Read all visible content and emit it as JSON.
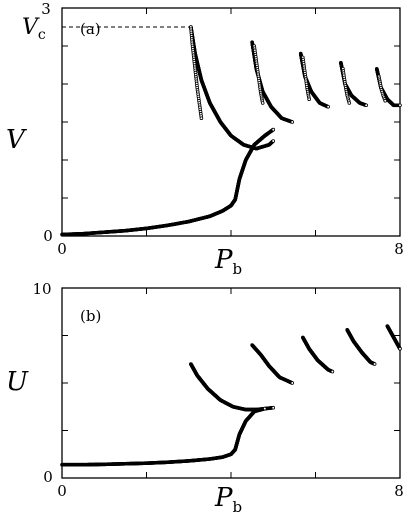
{
  "chart_data": [
    {
      "type": "scatter",
      "panel_label": "(a)",
      "xlabel": "P",
      "xlabel_sub": "b",
      "ylabel": "V",
      "xlim": [
        0,
        8
      ],
      "ylim": [
        0,
        3
      ],
      "x_ticks": [
        "0",
        "8"
      ],
      "y_ticks": [
        "0",
        "3"
      ],
      "annotation": {
        "label": "V",
        "sub": "c",
        "value": 2.75,
        "x_end": 3.05
      },
      "series": [
        {
          "points": [
            [
              0,
              0.02
            ],
            [
              0.5,
              0.03
            ],
            [
              1.0,
              0.05
            ],
            [
              1.5,
              0.07
            ],
            [
              2.0,
              0.1
            ],
            [
              2.5,
              0.14
            ],
            [
              3.0,
              0.19
            ],
            [
              3.5,
              0.26
            ],
            [
              3.8,
              0.33
            ],
            [
              4.0,
              0.4
            ],
            [
              4.1,
              0.48
            ]
          ]
        },
        {
          "points": [
            [
              4.1,
              0.48
            ],
            [
              4.2,
              0.75
            ],
            [
              4.35,
              1.0
            ],
            [
              4.55,
              1.2
            ],
            [
              4.8,
              1.32
            ],
            [
              5.0,
              1.4
            ]
          ]
        },
        {
          "points": [
            [
              3.05,
              2.75
            ],
            [
              3.15,
              2.4
            ],
            [
              3.3,
              2.05
            ],
            [
              3.5,
              1.75
            ],
            [
              3.75,
              1.5
            ],
            [
              4.0,
              1.32
            ],
            [
              4.3,
              1.2
            ],
            [
              4.6,
              1.15
            ],
            [
              4.9,
              1.2
            ],
            [
              5.0,
              1.25
            ]
          ]
        },
        {
          "points": [
            [
              3.05,
              2.75
            ],
            [
              3.08,
              2.55
            ],
            [
              3.12,
              2.35
            ],
            [
              3.16,
              2.15
            ],
            [
              3.2,
              1.95
            ],
            [
              3.25,
              1.75
            ],
            [
              3.3,
              1.55
            ]
          ],
          "sparse": true
        },
        {
          "points": [
            [
              4.5,
              2.55
            ],
            [
              4.6,
              2.2
            ],
            [
              4.75,
              1.9
            ],
            [
              4.95,
              1.7
            ],
            [
              5.2,
              1.55
            ],
            [
              5.45,
              1.5
            ]
          ]
        },
        {
          "points": [
            [
              4.55,
              2.5
            ],
            [
              4.6,
              2.3
            ],
            [
              4.65,
              2.1
            ],
            [
              4.7,
              1.9
            ],
            [
              4.75,
              1.75
            ]
          ],
          "sparse": true
        },
        {
          "points": [
            [
              5.65,
              2.4
            ],
            [
              5.75,
              2.1
            ],
            [
              5.9,
              1.9
            ],
            [
              6.1,
              1.75
            ],
            [
              6.3,
              1.7
            ]
          ]
        },
        {
          "points": [
            [
              5.7,
              2.35
            ],
            [
              5.75,
              2.15
            ],
            [
              5.8,
              1.95
            ],
            [
              5.85,
              1.8
            ]
          ],
          "sparse": true
        },
        {
          "points": [
            [
              6.6,
              2.28
            ],
            [
              6.7,
              2.0
            ],
            [
              6.85,
              1.85
            ],
            [
              7.05,
              1.75
            ],
            [
              7.2,
              1.72
            ]
          ]
        },
        {
          "points": [
            [
              6.65,
              2.2
            ],
            [
              6.7,
              2.0
            ],
            [
              6.75,
              1.85
            ],
            [
              6.8,
              1.75
            ]
          ],
          "sparse": true
        },
        {
          "points": [
            [
              7.45,
              2.2
            ],
            [
              7.55,
              1.95
            ],
            [
              7.7,
              1.8
            ],
            [
              7.85,
              1.72
            ],
            [
              8.0,
              1.72
            ]
          ]
        },
        {
          "points": [
            [
              7.5,
              2.1
            ],
            [
              7.55,
              1.95
            ],
            [
              7.6,
              1.85
            ],
            [
              7.65,
              1.78
            ]
          ],
          "sparse": true
        }
      ]
    },
    {
      "type": "scatter",
      "panel_label": "(b)",
      "xlabel": "P",
      "xlabel_sub": "b",
      "ylabel": "U",
      "xlim": [
        0,
        8
      ],
      "ylim": [
        0,
        10
      ],
      "x_ticks": [
        "0",
        "8"
      ],
      "y_ticks": [
        "0",
        "10"
      ],
      "series": [
        {
          "points": [
            [
              0,
              0.7
            ],
            [
              0.5,
              0.7
            ],
            [
              1.0,
              0.72
            ],
            [
              1.5,
              0.75
            ],
            [
              2.0,
              0.78
            ],
            [
              2.5,
              0.83
            ],
            [
              3.0,
              0.9
            ],
            [
              3.5,
              1.0
            ],
            [
              3.8,
              1.1
            ],
            [
              4.0,
              1.25
            ],
            [
              4.1,
              1.5
            ]
          ]
        },
        {
          "points": [
            [
              4.1,
              1.5
            ],
            [
              4.2,
              2.3
            ],
            [
              4.35,
              3.0
            ],
            [
              4.55,
              3.5
            ],
            [
              4.8,
              3.65
            ],
            [
              5.0,
              3.7
            ]
          ]
        },
        {
          "points": [
            [
              3.05,
              6.0
            ],
            [
              3.2,
              5.4
            ],
            [
              3.45,
              4.7
            ],
            [
              3.75,
              4.1
            ],
            [
              4.05,
              3.75
            ],
            [
              4.35,
              3.6
            ],
            [
              4.6,
              3.6
            ],
            [
              4.8,
              3.65
            ]
          ]
        },
        {
          "points": [
            [
              4.5,
              7.0
            ],
            [
              4.7,
              6.5
            ],
            [
              4.9,
              5.9
            ],
            [
              5.15,
              5.3
            ],
            [
              5.45,
              5.0
            ]
          ]
        },
        {
          "points": [
            [
              5.7,
              7.4
            ],
            [
              5.85,
              6.8
            ],
            [
              6.05,
              6.2
            ],
            [
              6.3,
              5.7
            ],
            [
              6.4,
              5.6
            ]
          ]
        },
        {
          "points": [
            [
              6.75,
              7.8
            ],
            [
              6.9,
              7.2
            ],
            [
              7.1,
              6.6
            ],
            [
              7.3,
              6.1
            ],
            [
              7.4,
              6.0
            ]
          ]
        },
        {
          "points": [
            [
              7.7,
              8.0
            ],
            [
              7.8,
              7.6
            ],
            [
              7.9,
              7.2
            ],
            [
              8.0,
              6.8
            ]
          ]
        }
      ]
    }
  ]
}
